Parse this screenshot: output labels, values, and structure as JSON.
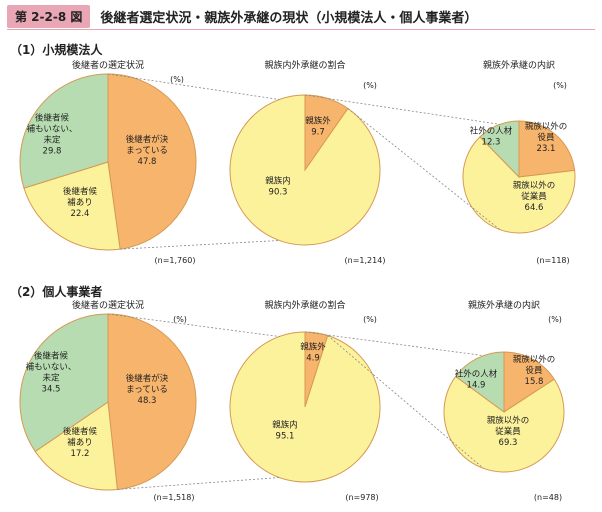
{
  "figure_number": "第 2-2-8 図",
  "figure_title": "後継者選定状況・親族外承継の現状（小規模法人・個人事業者）",
  "colors": {
    "orange": "#f7b46c",
    "yellow": "#fdf29c",
    "green": "#b7dcb2",
    "stroke": "#d59a52",
    "accent": "#e9a6b4"
  },
  "chart_data": [
    {
      "section": "（1）小規模法人",
      "charts": [
        {
          "type": "pie",
          "title": "後継者の選定状況",
          "unit": "(%)",
          "n": "(n=1,760)",
          "slices": [
            {
              "label": "後継者が決まっている",
              "value": 47.8,
              "color": "orange",
              "lines": [
                "後継者が決",
                "まっている",
                "47.8"
              ]
            },
            {
              "label": "後継者候補あり",
              "value": 22.4,
              "color": "yellow",
              "lines": [
                "後継者候",
                "補あり",
                "22.4"
              ]
            },
            {
              "label": "後継者候補もいない、未定",
              "value": 29.8,
              "color": "green",
              "lines": [
                "後継者候",
                "補もいない、",
                "未定",
                "29.8"
              ]
            }
          ]
        },
        {
          "type": "pie",
          "title": "親族内外承継の割合",
          "unit": "(%)",
          "n": "(n=1,214)",
          "slices": [
            {
              "label": "親族外",
              "value": 9.7,
              "color": "orange",
              "lines": [
                "親族外",
                "9.7"
              ]
            },
            {
              "label": "親族内",
              "value": 90.3,
              "color": "yellow",
              "lines": [
                "親族内",
                "90.3"
              ]
            }
          ]
        },
        {
          "type": "pie",
          "title": "親族外承継の内訳",
          "unit": "(%)",
          "n": "(n=118)",
          "slices": [
            {
              "label": "親族以外の役員",
              "value": 23.1,
              "color": "orange",
              "lines": [
                "親族以外の",
                "役員",
                "23.1"
              ]
            },
            {
              "label": "親族以外の従業員",
              "value": 64.6,
              "color": "yellow",
              "lines": [
                "親族以外の",
                "従業員",
                "64.6"
              ]
            },
            {
              "label": "社外の人材",
              "value": 12.3,
              "color": "green",
              "lines": [
                "社外の人材",
                "12.3"
              ]
            }
          ]
        }
      ]
    },
    {
      "section": "（2）個人事業者",
      "charts": [
        {
          "type": "pie",
          "title": "後継者の選定状況",
          "unit": "(%)",
          "n": "(n=1,518)",
          "slices": [
            {
              "label": "後継者が決まっている",
              "value": 48.3,
              "color": "orange",
              "lines": [
                "後継者が決",
                "まっている",
                "48.3"
              ]
            },
            {
              "label": "後継者候補あり",
              "value": 17.2,
              "color": "yellow",
              "lines": [
                "後継者候",
                "補あり",
                "17.2"
              ]
            },
            {
              "label": "後継者候補もいない、未定",
              "value": 34.5,
              "color": "green",
              "lines": [
                "後継者候",
                "補もいない、",
                "未定",
                "34.5"
              ]
            }
          ]
        },
        {
          "type": "pie",
          "title": "親族内外承継の割合",
          "unit": "(%)",
          "n": "(n=978)",
          "slices": [
            {
              "label": "親族外",
              "value": 4.9,
              "color": "orange",
              "lines": [
                "親族外",
                "4.9"
              ]
            },
            {
              "label": "親族内",
              "value": 95.1,
              "color": "yellow",
              "lines": [
                "親族内",
                "95.1"
              ]
            }
          ]
        },
        {
          "type": "pie",
          "title": "親族外承継の内訳",
          "unit": "(%)",
          "n": "(n=48)",
          "slices": [
            {
              "label": "親族以外の役員",
              "value": 15.8,
              "color": "orange",
              "lines": [
                "親族以外の",
                "役員",
                "15.8"
              ]
            },
            {
              "label": "親族以外の従業員",
              "value": 69.3,
              "color": "yellow",
              "lines": [
                "親族以外の",
                "従業員",
                "69.3"
              ]
            },
            {
              "label": "社外の人材",
              "value": 14.9,
              "color": "green",
              "lines": [
                "社外の人材",
                "14.9"
              ]
            }
          ]
        }
      ]
    }
  ]
}
